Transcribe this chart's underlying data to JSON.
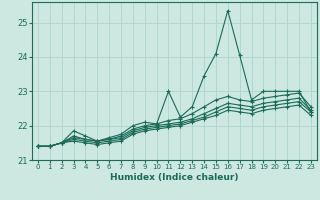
{
  "xlabel": "Humidex (Indice chaleur)",
  "ylabel": "",
  "xlim": [
    -0.5,
    23.5
  ],
  "ylim": [
    21.0,
    25.6
  ],
  "yticks": [
    21,
    22,
    23,
    24,
    25
  ],
  "xticks": [
    0,
    1,
    2,
    3,
    4,
    5,
    6,
    7,
    8,
    9,
    10,
    11,
    12,
    13,
    14,
    15,
    16,
    17,
    18,
    19,
    20,
    21,
    22,
    23
  ],
  "background_color": "#cce8e0",
  "grid_color": "#b0d8d0",
  "line_color": "#1a6b5a",
  "lines": [
    {
      "x": [
        0,
        1,
        2,
        3,
        4,
        5,
        6,
        7,
        8,
        9,
        10,
        11,
        12,
        13,
        14,
        15,
        16,
        17,
        18,
        19,
        20,
        21,
        22,
        23
      ],
      "y": [
        21.4,
        21.4,
        21.5,
        21.85,
        21.7,
        21.55,
        21.65,
        21.75,
        22.0,
        22.1,
        22.05,
        23.0,
        22.25,
        22.55,
        23.45,
        24.1,
        25.35,
        24.05,
        22.75,
        23.0,
        23.0,
        23.0,
        23.0,
        22.4
      ]
    },
    {
      "x": [
        0,
        1,
        2,
        3,
        4,
        5,
        6,
        7,
        8,
        9,
        10,
        11,
        12,
        13,
        14,
        15,
        16,
        17,
        18,
        19,
        20,
        21,
        22,
        23
      ],
      "y": [
        21.4,
        21.4,
        21.5,
        21.7,
        21.6,
        21.55,
        21.6,
        21.7,
        21.9,
        22.0,
        22.05,
        22.15,
        22.2,
        22.35,
        22.55,
        22.75,
        22.85,
        22.75,
        22.7,
        22.8,
        22.85,
        22.9,
        22.95,
        22.55
      ]
    },
    {
      "x": [
        0,
        1,
        2,
        3,
        4,
        5,
        6,
        7,
        8,
        9,
        10,
        11,
        12,
        13,
        14,
        15,
        16,
        17,
        18,
        19,
        20,
        21,
        22,
        23
      ],
      "y": [
        21.4,
        21.4,
        21.5,
        21.65,
        21.6,
        21.55,
        21.6,
        21.65,
        21.85,
        21.95,
        22.0,
        22.05,
        22.1,
        22.2,
        22.35,
        22.5,
        22.65,
        22.6,
        22.55,
        22.65,
        22.7,
        22.75,
        22.8,
        22.45
      ]
    },
    {
      "x": [
        0,
        1,
        2,
        3,
        4,
        5,
        6,
        7,
        8,
        9,
        10,
        11,
        12,
        13,
        14,
        15,
        16,
        17,
        18,
        19,
        20,
        21,
        22,
        23
      ],
      "y": [
        21.4,
        21.4,
        21.5,
        21.6,
        21.55,
        21.5,
        21.55,
        21.6,
        21.8,
        21.9,
        21.95,
        22.0,
        22.05,
        22.15,
        22.25,
        22.4,
        22.55,
        22.5,
        22.45,
        22.55,
        22.6,
        22.65,
        22.7,
        22.4
      ]
    },
    {
      "x": [
        0,
        1,
        2,
        3,
        4,
        5,
        6,
        7,
        8,
        9,
        10,
        11,
        12,
        13,
        14,
        15,
        16,
        17,
        18,
        19,
        20,
        21,
        22,
        23
      ],
      "y": [
        21.4,
        21.4,
        21.5,
        21.55,
        21.5,
        21.45,
        21.5,
        21.55,
        21.75,
        21.85,
        21.9,
        21.95,
        22.0,
        22.1,
        22.2,
        22.3,
        22.45,
        22.4,
        22.35,
        22.45,
        22.5,
        22.55,
        22.6,
        22.3
      ]
    }
  ]
}
